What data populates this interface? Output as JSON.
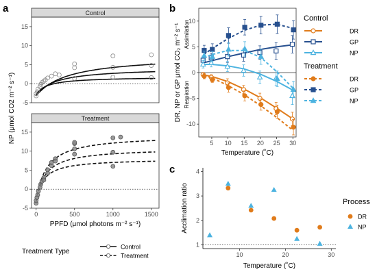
{
  "colors": {
    "DR": "#e07b1a",
    "GP": "#27508f",
    "NP": "#4cb3e0",
    "strip_bg": "#d9d9d9",
    "panel_border": "#333333",
    "grid_bg": "#ffffff",
    "fitted_curve": "#111111",
    "point_grey": "#8a8a8a"
  },
  "panel_labels": [
    "a",
    "b",
    "c"
  ],
  "chart_data": [
    {
      "id": "a",
      "type": "scatter",
      "strips": [
        "Control",
        "Treatment"
      ],
      "xlabel": "PPFD (μmol photons m⁻² s⁻¹)",
      "ylabel": "NP (μmol CO2 m⁻² s⁻¹)",
      "xlim": [
        -60,
        1600
      ],
      "ylim": [
        -5,
        17.5
      ],
      "xticks": [
        0,
        500,
        1000,
        1500
      ],
      "yticks": [
        -5,
        0,
        5,
        10,
        15
      ],
      "reference_line_y": 0,
      "legend": {
        "title": "Treatment Type",
        "placement": "bottom",
        "entries": [
          {
            "label": "Control",
            "linetype": "solid"
          },
          {
            "label": "Treatment",
            "linetype": "dashed"
          }
        ]
      },
      "facets": [
        {
          "strip": "Control",
          "points": [
            {
              "x": 0,
              "y": -3.2
            },
            {
              "x": 0,
              "y": -2.6
            },
            {
              "x": 15,
              "y": -2.1
            },
            {
              "x": 25,
              "y": -1.4
            },
            {
              "x": 50,
              "y": -0.8
            },
            {
              "x": 60,
              "y": -0.2
            },
            {
              "x": 75,
              "y": 0.3
            },
            {
              "x": 100,
              "y": 0.7
            },
            {
              "x": 120,
              "y": 1.0
            },
            {
              "x": 150,
              "y": 1.5
            },
            {
              "x": 200,
              "y": 2.0
            },
            {
              "x": 250,
              "y": 2.6
            },
            {
              "x": 300,
              "y": 2.3
            },
            {
              "x": 500,
              "y": 1.4
            },
            {
              "x": 500,
              "y": 4.2
            },
            {
              "x": 500,
              "y": 5.2
            },
            {
              "x": 1000,
              "y": 1.7
            },
            {
              "x": 1000,
              "y": 4.3
            },
            {
              "x": 1000,
              "y": 7.3
            },
            {
              "x": 1500,
              "y": 1.6
            },
            {
              "x": 1500,
              "y": 4.8
            },
            {
              "x": 1500,
              "y": 7.6
            }
          ],
          "curves": [
            {
              "linetype": "solid",
              "amax": 10.6,
              "k": 420,
              "rd": 3.2
            },
            {
              "linetype": "solid",
              "amax": 7.2,
              "k": 260,
              "rd": 3.0
            },
            {
              "linetype": "solid",
              "amax": 4.6,
              "k": 150,
              "rd": 2.8
            }
          ]
        },
        {
          "strip": "Treatment",
          "points": [
            {
              "x": 0,
              "y": -3.7
            },
            {
              "x": 0,
              "y": -3.0
            },
            {
              "x": 10,
              "y": -2.2
            },
            {
              "x": 20,
              "y": -1.5
            },
            {
              "x": 30,
              "y": -0.5
            },
            {
              "x": 50,
              "y": 0.5
            },
            {
              "x": 60,
              "y": 1.3
            },
            {
              "x": 75,
              "y": 2.1
            },
            {
              "x": 100,
              "y": 3.0
            },
            {
              "x": 100,
              "y": 2.4
            },
            {
              "x": 150,
              "y": 4.2
            },
            {
              "x": 150,
              "y": 5.1
            },
            {
              "x": 200,
              "y": 6.2
            },
            {
              "x": 200,
              "y": 7.0
            },
            {
              "x": 250,
              "y": 8.0
            },
            {
              "x": 250,
              "y": 7.4
            },
            {
              "x": 500,
              "y": 9.2
            },
            {
              "x": 500,
              "y": 10.6
            },
            {
              "x": 500,
              "y": 12.0
            },
            {
              "x": 500,
              "y": 12.3
            },
            {
              "x": 1000,
              "y": 6.0
            },
            {
              "x": 1000,
              "y": 9.7
            },
            {
              "x": 1000,
              "y": 13.5
            },
            {
              "x": 1100,
              "y": 13.7
            }
          ],
          "curves": [
            {
              "linetype": "dashed",
              "amax": 17.5,
              "k": 135,
              "rd": 3.3
            },
            {
              "linetype": "dashed",
              "amax": 14.1,
              "k": 120,
              "rd": 3.3
            },
            {
              "linetype": "dashed",
              "amax": 11.3,
              "k": 95,
              "rd": 3.3
            }
          ]
        }
      ]
    },
    {
      "id": "b",
      "type": "line",
      "xlabel": "Temperature (˚C)",
      "ylabel": "DR, NP or GP μmol CO₂ m⁻² s⁻¹",
      "annotations": [
        "Assimilation",
        "Respiration"
      ],
      "xlim": [
        1,
        31
      ],
      "ylim": [
        -12.5,
        12.5
      ],
      "xticks": [
        5,
        10,
        15,
        20,
        25,
        30
      ],
      "yticks": [
        -10,
        -5,
        0,
        5,
        10
      ],
      "reference_line_y": 0,
      "legend": {
        "placement": "right",
        "groups": [
          {
            "title": "Control",
            "entries": [
              "DR",
              "GP",
              "NP"
            ]
          },
          {
            "title": "Treatment",
            "entries": [
              "DR",
              "GP",
              "NP"
            ]
          }
        ]
      },
      "x": [
        2.5,
        5,
        10,
        15,
        20,
        25,
        30
      ],
      "series": [
        {
          "name": "DR",
          "group": "Control",
          "marker": "open-circle",
          "linetype": "solid",
          "values": [
            -0.4,
            -0.9,
            -2.0,
            -3.3,
            -5.0,
            -7.0,
            -9.0
          ],
          "errors": [
            0.4,
            0.5,
            0.8,
            0.8,
            1.0,
            1.2,
            1.3
          ],
          "fit": [
            [
              2.5,
              -0.45
            ],
            [
              5,
              -0.75
            ],
            [
              10,
              -1.75
            ],
            [
              15,
              -3.2
            ],
            [
              20,
              -4.9
            ],
            [
              25,
              -6.9
            ],
            [
              30,
              -9.0
            ]
          ]
        },
        {
          "name": "GP",
          "group": "Control",
          "marker": "open-square",
          "linetype": "solid",
          "values": [
            2.4,
            2.9,
            3.1,
            3.4,
            3.9,
            4.2,
            5.5
          ],
          "errors": [
            0.8,
            0.9,
            1.2,
            1.2,
            1.3,
            1.6,
            1.7
          ],
          "fit": [
            [
              2.5,
              1.9
            ],
            [
              5,
              2.3
            ],
            [
              10,
              3.1
            ],
            [
              15,
              3.8
            ],
            [
              20,
              4.5
            ],
            [
              25,
              5.0
            ],
            [
              30,
              5.4
            ]
          ]
        },
        {
          "name": "NP",
          "group": "Control",
          "marker": "open-triangle",
          "linetype": "solid",
          "values": [
            1.6,
            1.9,
            1.2,
            0.4,
            -0.9,
            -1.1,
            -4.5
          ],
          "errors": [
            0.7,
            0.8,
            1.0,
            1.1,
            1.2,
            1.4,
            1.7
          ],
          "fit": [
            [
              2.5,
              1.6
            ],
            [
              5,
              1.6
            ],
            [
              10,
              1.3
            ],
            [
              15,
              0.7
            ],
            [
              20,
              -0.3
            ],
            [
              25,
              -1.7
            ],
            [
              30,
              -3.4
            ]
          ]
        },
        {
          "name": "DR",
          "group": "Treatment",
          "marker": "filled-circle",
          "linetype": "dashed",
          "values": [
            -0.7,
            -1.4,
            -2.9,
            -4.5,
            -6.2,
            -7.6,
            -10.6
          ],
          "errors": [
            0.5,
            0.5,
            0.9,
            1.0,
            1.1,
            1.3,
            1.5
          ],
          "fit": [
            [
              2.5,
              -0.5
            ],
            [
              5,
              -1.0
            ],
            [
              10,
              -2.5
            ],
            [
              15,
              -4.3
            ],
            [
              20,
              -6.4
            ],
            [
              25,
              -8.7
            ],
            [
              30,
              -11.2
            ]
          ]
        },
        {
          "name": "GP",
          "group": "Treatment",
          "marker": "filled-square",
          "linetype": "dashed",
          "values": [
            4.3,
            4.5,
            7.2,
            8.8,
            9.2,
            9.4,
            8.3
          ],
          "errors": [
            1.0,
            1.1,
            1.5,
            1.5,
            1.7,
            1.8,
            1.8
          ],
          "fit": [
            [
              2.5,
              3.5
            ],
            [
              5,
              4.6
            ],
            [
              10,
              6.6
            ],
            [
              15,
              8.2
            ],
            [
              20,
              9.2
            ],
            [
              25,
              9.4
            ],
            [
              30,
              8.6
            ]
          ]
        },
        {
          "name": "NP",
          "group": "Treatment",
          "marker": "filled-triangle",
          "linetype": "dashed",
          "values": [
            3.3,
            3.1,
            4.5,
            4.6,
            3.1,
            -1.2,
            -3.3
          ],
          "errors": [
            0.9,
            1.0,
            1.3,
            1.4,
            1.5,
            1.5,
            1.6
          ],
          "fit": [
            [
              2.5,
              2.9
            ],
            [
              5,
              3.5
            ],
            [
              10,
              4.3
            ],
            [
              15,
              4.3
            ],
            [
              20,
              3.0
            ],
            [
              25,
              0.2
            ],
            [
              30,
              -3.0
            ]
          ]
        }
      ]
    },
    {
      "id": "c",
      "type": "scatter",
      "xlabel": "Temperature (˚C)",
      "ylabel": "Acclimation ratio",
      "xlim": [
        2,
        31
      ],
      "ylim": [
        0.85,
        4.15
      ],
      "xticks": [
        10,
        20,
        30
      ],
      "yticks": [
        1,
        2,
        3,
        4
      ],
      "reference_line_y": 1,
      "legend": {
        "title": "Process",
        "placement": "right",
        "entries": [
          "DR",
          "NP"
        ]
      },
      "series": [
        {
          "name": "DR",
          "marker": "filled-circle",
          "points": [
            [
              7.5,
              3.32
            ],
            [
              12.5,
              2.42
            ],
            [
              17.5,
              2.08
            ],
            [
              22.5,
              1.6
            ],
            [
              27.5,
              1.72
            ]
          ]
        },
        {
          "name": "NP",
          "marker": "filled-triangle",
          "points": [
            [
              3.5,
              1.4
            ],
            [
              7.5,
              3.5
            ],
            [
              12.5,
              2.6
            ],
            [
              17.5,
              3.25
            ],
            [
              22.5,
              1.25
            ],
            [
              27.5,
              1.05
            ]
          ]
        }
      ]
    }
  ]
}
